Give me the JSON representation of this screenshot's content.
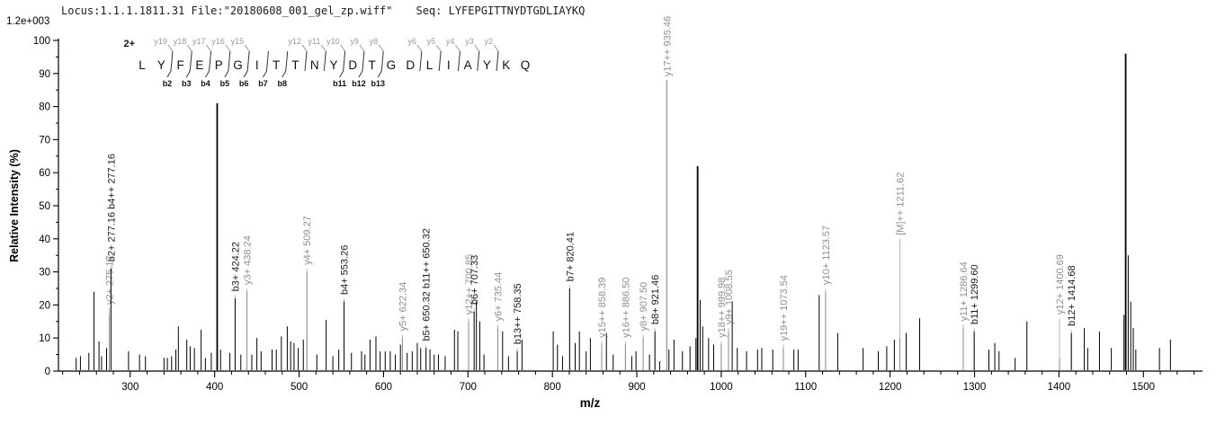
{
  "header": {
    "locus_file": "Locus:1.1.1.1811.31 File:\"20180608_001_gel_zp.wiff\"",
    "seq_label": "Seq:",
    "sequence": "LYFEPGITTNYDTGDLIAYKQ"
  },
  "top_left_scale": "1.2e+003",
  "colors": {
    "axis": "#000000",
    "peak_black": "#000000",
    "peak_gray": "#8c8c8c",
    "leader_line": "#b0b0b0",
    "y_ion_label": "#8f8f8f",
    "b_ion_label": "#1a1a1a",
    "ladder_y_label": "#999999",
    "ladder_b_label": "#111111"
  },
  "chart_data": {
    "type": "bar",
    "subtype": "ms2-peptide-fragmentation-spectrum",
    "title": "",
    "xlabel": "m/z",
    "ylabel": "Relative  Intensity (%)",
    "xlim": [
      215,
      1570
    ],
    "ylim": [
      0,
      100
    ],
    "x_major_ticks": [
      300,
      400,
      500,
      600,
      700,
      800,
      900,
      1000,
      1100,
      1200,
      1300,
      1400,
      1500
    ],
    "x_minor_step": 20,
    "y_major_ticks": [
      0,
      10,
      20,
      30,
      40,
      50,
      60,
      70,
      80,
      90,
      100
    ],
    "y_minor_step": 5,
    "grid": false,
    "legend": "none",
    "max_intensity_counts": "1.2e+003",
    "precursor_charge": "2+",
    "peptide": {
      "residues": [
        "L",
        "Y",
        "F",
        "E",
        "P",
        "G",
        "I",
        "T",
        "T",
        "N",
        "Y",
        "D",
        "T",
        "G",
        "D",
        "L",
        "I",
        "A",
        "Y",
        "K",
        "Q"
      ],
      "cleavages": [
        {
          "before": 2,
          "y": "y19",
          "b": "b2"
        },
        {
          "before": 3,
          "y": "y18",
          "b": "b3"
        },
        {
          "before": 4,
          "y": "y17",
          "b": "b4"
        },
        {
          "before": 5,
          "y": "y16",
          "b": "b5"
        },
        {
          "before": 6,
          "y": "y15",
          "b": "b6"
        },
        {
          "before": 7,
          "y": "",
          "b": "b7"
        },
        {
          "before": 8,
          "y": "",
          "b": "b8"
        },
        {
          "before": 9,
          "y": "y12",
          "b": ""
        },
        {
          "before": 10,
          "y": "y11",
          "b": ""
        },
        {
          "before": 11,
          "y": "y10",
          "b": "b11"
        },
        {
          "before": 12,
          "y": "y9",
          "b": "b12"
        },
        {
          "before": 13,
          "y": "y8",
          "b": "b13"
        },
        {
          "before": 15,
          "y": "y6",
          "b": ""
        },
        {
          "before": 16,
          "y": "y5",
          "b": ""
        },
        {
          "before": 17,
          "y": "y4",
          "b": ""
        },
        {
          "before": 18,
          "y": "y3",
          "b": ""
        },
        {
          "before": 19,
          "y": "y2",
          "b": ""
        }
      ]
    },
    "annotations": [
      {
        "label": "y2+ 275.17",
        "mz": 275.17,
        "series": "y",
        "peak_pct": 17,
        "base_pct": 19
      },
      {
        "label": "b2+ 277.16  b4++ 277.16",
        "mz": 277.16,
        "series": "b",
        "peak_pct": 31,
        "base_pct": 32
      },
      {
        "label": "b3+ 424.22",
        "mz": 424.22,
        "series": "b",
        "peak_pct": 22,
        "base_pct": 23
      },
      {
        "label": "y3+ 438.24",
        "mz": 438.24,
        "series": "y",
        "peak_pct": 24,
        "base_pct": 25
      },
      {
        "label": "y4+ 509.27",
        "mz": 509.27,
        "series": "y",
        "peak_pct": 30,
        "base_pct": 31
      },
      {
        "label": "b4+ 553.26",
        "mz": 553.26,
        "series": "b",
        "peak_pct": 21,
        "base_pct": 22
      },
      {
        "label": "y5+ 622.34",
        "mz": 622.34,
        "series": "y",
        "peak_pct": 10,
        "base_pct": 11
      },
      {
        "label": "b5+ 650.32  b11++ 650.32",
        "mz": 650.32,
        "series": "b",
        "peak_pct": 7,
        "base_pct": 8
      },
      {
        "label": "y12++ 700.85",
        "mz": 700.85,
        "series": "y",
        "peak_pct": 15,
        "base_pct": 16
      },
      {
        "label": "b6+ 707.33",
        "mz": 707.33,
        "series": "b",
        "peak_pct": 18,
        "base_pct": 19
      },
      {
        "label": "y6+ 735.44",
        "mz": 735.44,
        "series": "y",
        "peak_pct": 13,
        "base_pct": 14
      },
      {
        "label": "b13++ 758.35",
        "mz": 758.35,
        "series": "b",
        "peak_pct": 6,
        "base_pct": 7
      },
      {
        "label": "b7+ 820.41",
        "mz": 820.41,
        "series": "b",
        "peak_pct": 25,
        "base_pct": 26
      },
      {
        "label": "y15++ 858.39",
        "mz": 858.39,
        "series": "y",
        "peak_pct": 8,
        "base_pct": 9
      },
      {
        "label": "y16++ 886.50",
        "mz": 886.5,
        "series": "y",
        "peak_pct": 8,
        "base_pct": 9
      },
      {
        "label": "y8+ 907.50",
        "mz": 907.5,
        "series": "y",
        "peak_pct": 10,
        "base_pct": 11
      },
      {
        "label": "b8+ 921.46",
        "mz": 921.46,
        "series": "b",
        "peak_pct": 12,
        "base_pct": 13
      },
      {
        "label": "y17++ 935.46",
        "mz": 935.46,
        "series": "y",
        "peak_pct": 88,
        "base_pct": 88
      },
      {
        "label": "y18++ 999.98",
        "mz": 999.98,
        "series": "y",
        "peak_pct": 8,
        "base_pct": 9
      },
      {
        "label": "y9+ 1008.55",
        "mz": 1008.55,
        "series": "y",
        "peak_pct": 12,
        "base_pct": 13
      },
      {
        "label": "y19++ 1073.54",
        "mz": 1073.54,
        "series": "y",
        "peak_pct": 7,
        "base_pct": 8
      },
      {
        "label": "y10+ 1123.57",
        "mz": 1123.57,
        "series": "y",
        "peak_pct": 24,
        "base_pct": 25
      },
      {
        "label": "[M]++ 1211.62",
        "mz": 1211.62,
        "series": "M",
        "peak_pct": 10,
        "base_pct": 40
      },
      {
        "label": "y11+ 1286.64",
        "mz": 1286.64,
        "series": "y",
        "peak_pct": 13,
        "base_pct": 14
      },
      {
        "label": "b11+ 1299.60",
        "mz": 1299.6,
        "series": "b",
        "peak_pct": 12,
        "base_pct": 13
      },
      {
        "label": "y12+ 1400.69",
        "mz": 1400.69,
        "series": "y",
        "peak_pct": 4,
        "base_pct": 16
      },
      {
        "label": "b12+ 1414.68",
        "mz": 1414.68,
        "series": "b",
        "peak_pct": 11.5,
        "base_pct": 12.5
      }
    ],
    "peaks": [
      [
        236,
        4
      ],
      [
        241,
        4.5
      ],
      [
        251,
        5.5
      ],
      [
        257,
        24
      ],
      [
        263,
        9
      ],
      [
        266,
        4.5
      ],
      [
        272,
        7
      ],
      [
        298,
        6
      ],
      [
        311,
        5
      ],
      [
        318,
        4.5
      ],
      [
        340,
        4
      ],
      [
        344,
        4
      ],
      [
        349,
        4.5
      ],
      [
        354,
        6.5
      ],
      [
        357,
        13.5
      ],
      [
        367,
        9.5
      ],
      [
        371,
        7.5
      ],
      [
        376,
        7
      ],
      [
        384,
        12.5
      ],
      [
        389,
        4
      ],
      [
        396,
        5.5
      ],
      [
        403,
        81
      ],
      [
        407,
        6.5
      ],
      [
        418,
        5.5
      ],
      [
        431,
        5
      ],
      [
        444,
        5
      ],
      [
        450,
        10
      ],
      [
        455,
        6
      ],
      [
        468,
        6.5
      ],
      [
        473,
        6.5
      ],
      [
        479,
        10.5
      ],
      [
        486,
        13.5
      ],
      [
        490,
        9
      ],
      [
        494,
        8.5
      ],
      [
        499,
        7
      ],
      [
        505,
        9.5
      ],
      [
        521,
        5
      ],
      [
        532,
        15.5
      ],
      [
        540,
        4.5
      ],
      [
        547,
        6.5
      ],
      [
        562,
        5.5
      ],
      [
        574,
        6
      ],
      [
        578,
        5
      ],
      [
        584,
        9.5
      ],
      [
        591,
        10.5
      ],
      [
        596,
        6
      ],
      [
        602,
        6
      ],
      [
        608,
        6
      ],
      [
        614,
        5
      ],
      [
        620,
        8
      ],
      [
        628,
        5.5
      ],
      [
        634,
        6
      ],
      [
        640,
        8.5
      ],
      [
        644,
        7
      ],
      [
        655,
        6.5
      ],
      [
        660,
        5
      ],
      [
        665,
        5
      ],
      [
        673,
        4.5
      ],
      [
        684,
        12.5
      ],
      [
        688,
        12
      ],
      [
        710,
        21
      ],
      [
        714,
        15
      ],
      [
        719,
        5
      ],
      [
        741,
        12
      ],
      [
        748,
        4.5
      ],
      [
        764,
        9.5
      ],
      [
        801,
        12
      ],
      [
        806,
        8
      ],
      [
        812,
        4.5
      ],
      [
        827,
        8.5
      ],
      [
        832,
        12
      ],
      [
        840,
        6
      ],
      [
        845,
        10
      ],
      [
        864,
        11.5
      ],
      [
        872,
        5
      ],
      [
        894,
        4.5
      ],
      [
        899,
        6
      ],
      [
        915,
        5
      ],
      [
        927,
        3
      ],
      [
        938,
        6.5
      ],
      [
        944,
        9.5
      ],
      [
        954,
        6
      ],
      [
        963,
        7.5
      ],
      [
        970,
        10
      ],
      [
        972,
        62
      ],
      [
        975,
        21.5
      ],
      [
        978,
        13.5
      ],
      [
        985,
        10
      ],
      [
        991,
        8
      ],
      [
        1013,
        21
      ],
      [
        1019,
        7
      ],
      [
        1030,
        6
      ],
      [
        1043,
        6.5
      ],
      [
        1048,
        7
      ],
      [
        1061,
        6.5
      ],
      [
        1086,
        6.5
      ],
      [
        1091,
        6.5
      ],
      [
        1116,
        23
      ],
      [
        1138,
        11.5
      ],
      [
        1168,
        7
      ],
      [
        1186,
        6
      ],
      [
        1196,
        7.5
      ],
      [
        1205,
        9.5
      ],
      [
        1219,
        11.5
      ],
      [
        1235,
        16
      ],
      [
        1317,
        6.5
      ],
      [
        1324,
        8.5
      ],
      [
        1329,
        6
      ],
      [
        1348,
        4
      ],
      [
        1362,
        15
      ],
      [
        1430,
        13
      ],
      [
        1434,
        7
      ],
      [
        1448,
        12
      ],
      [
        1462,
        7
      ],
      [
        1477,
        17
      ],
      [
        1479,
        96
      ],
      [
        1482,
        35
      ],
      [
        1485,
        21
      ],
      [
        1488,
        13
      ],
      [
        1491,
        6.5
      ],
      [
        1519,
        7
      ],
      [
        1532,
        9.5
      ]
    ]
  }
}
